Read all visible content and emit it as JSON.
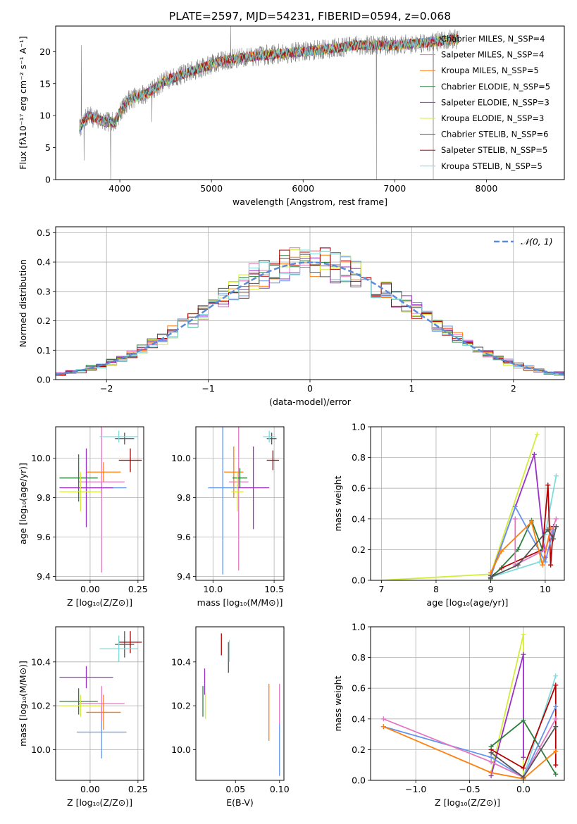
{
  "figure": {
    "title": "PLATE=2597, MJD=54231, FIBERID=0594, z=0.068"
  },
  "colors": {
    "chabrier_miles": "#6495ed",
    "salpeter_miles": "#e377c2",
    "kroupa_miles": "#ff7f0e",
    "chabrier_elodie": "#2f7f3f",
    "salpeter_elodie": "#9b30c6",
    "kroupa_elodie": "#d4ec3a",
    "chabrier_stelib": "#555555",
    "salpeter_stelib": "#b20000",
    "kroupa_stelib": "#7fdcdc",
    "data": "#808080",
    "gaussian": "#5b8ad6"
  },
  "chart_data": [
    {
      "id": "spectrum",
      "type": "line",
      "title": "PLATE=2597, MJD=54231, FIBERID=0594, z=0.068",
      "xlabel": "wavelength [Angstrom, rest frame]",
      "ylabel": "Flux [fλ10⁻¹⁷ erg cm⁻² s⁻¹ A⁻¹]",
      "xlim": [
        3300,
        8850
      ],
      "ylim": [
        0,
        24
      ],
      "xticks": [
        4000,
        5000,
        6000,
        7000,
        8000
      ],
      "yticks": [
        0,
        5,
        10,
        15,
        20
      ],
      "legend_position": "right",
      "legend": [
        {
          "label": "Chabrier MILES, N_SSP=4",
          "color_key": "chabrier_miles"
        },
        {
          "label": "Salpeter MILES, N_SSP=4",
          "color_key": "salpeter_miles"
        },
        {
          "label": "Kroupa MILES, N_SSP=5",
          "color_key": "kroupa_miles"
        },
        {
          "label": "Chabrier ELODIE, N_SSP=5",
          "color_key": "chabrier_elodie"
        },
        {
          "label": "Salpeter ELODIE, N_SSP=3",
          "color_key": "salpeter_elodie"
        },
        {
          "label": "Kroupa ELODIE, N_SSP=3",
          "color_key": "kroupa_elodie"
        },
        {
          "label": "Chabrier STELIB, N_SSP=6",
          "color_key": "chabrier_stelib"
        },
        {
          "label": "Salpeter STELIB, N_SSP=5",
          "color_key": "salpeter_stelib"
        },
        {
          "label": "Kroupa STELIB, N_SSP=5",
          "color_key": "kroupa_stelib"
        }
      ],
      "continuum": [
        [
          3560,
          8
        ],
        [
          3650,
          10
        ],
        [
          3750,
          9.5
        ],
        [
          3850,
          9
        ],
        [
          3950,
          9
        ],
        [
          4000,
          10.5
        ],
        [
          4100,
          12.5
        ],
        [
          4200,
          13
        ],
        [
          4300,
          13.5
        ],
        [
          4500,
          15.5
        ],
        [
          4700,
          16.5
        ],
        [
          4900,
          17.5
        ],
        [
          5100,
          18.5
        ],
        [
          5300,
          19
        ],
        [
          5600,
          19.5
        ],
        [
          6000,
          20
        ],
        [
          6300,
          20.5
        ],
        [
          6600,
          21
        ],
        [
          7000,
          21
        ],
        [
          7400,
          21.5
        ],
        [
          7700,
          22
        ]
      ],
      "spikes": [
        [
          3580,
          21
        ],
        [
          3610,
          3
        ],
        [
          3900,
          0
        ],
        [
          4350,
          9
        ],
        [
          5210,
          24
        ],
        [
          6800,
          0
        ],
        [
          7420,
          0
        ]
      ]
    },
    {
      "id": "residuals",
      "type": "bar",
      "xlabel": "(data-model)/error",
      "ylabel": "Normed distribution",
      "xlim": [
        -2.5,
        2.5
      ],
      "ylim": [
        0,
        0.52
      ],
      "xticks": [
        -2,
        -1,
        0,
        1,
        2
      ],
      "yticks": [
        0.0,
        0.1,
        0.2,
        0.3,
        0.4,
        0.5
      ],
      "grid": true,
      "legend_position": "top-right",
      "legend_label": "𝒩(0, 1)",
      "gaussian": {
        "mean": 0,
        "sigma": 1
      }
    },
    {
      "id": "age-vs-Z",
      "type": "scatter",
      "xlabel": "Z [log₁₀(Z/Z⊙)]",
      "ylabel": "age  [log₁₀(age/yr)]",
      "xlim": [
        -0.18,
        0.28
      ],
      "ylim": [
        9.38,
        10.16
      ],
      "xticks": [
        0.0,
        0.25
      ],
      "yticks": [
        9.4,
        9.6,
        9.8,
        10.0
      ],
      "grid": true,
      "points": [
        {
          "color_key": "chabrier_miles",
          "x": 0.06,
          "xerr": 0.13,
          "y": 9.85,
          "yerr": 0.03
        },
        {
          "color_key": "salpeter_miles",
          "x": 0.06,
          "xerr": 0.12,
          "y": 9.88,
          "yerr": 0.46
        },
        {
          "color_key": "kroupa_miles",
          "x": 0.07,
          "xerr": 0.09,
          "y": 9.93,
          "yerr": 0.05
        },
        {
          "color_key": "chabrier_elodie",
          "x": -0.06,
          "xerr": 0.1,
          "y": 9.9,
          "yerr": 0.12
        },
        {
          "color_key": "salpeter_elodie",
          "x": -0.02,
          "xerr": 0.14,
          "y": 9.85,
          "yerr": 0.2
        },
        {
          "color_key": "kroupa_elodie",
          "x": -0.05,
          "xerr": 0.11,
          "y": 9.83,
          "yerr": 0.1
        },
        {
          "color_key": "chabrier_stelib",
          "x": 0.18,
          "xerr": 0.05,
          "y": 10.1,
          "yerr": 0.03
        },
        {
          "color_key": "salpeter_stelib",
          "x": 0.21,
          "xerr": 0.06,
          "y": 9.99,
          "yerr": 0.06
        },
        {
          "color_key": "kroupa_stelib",
          "x": 0.15,
          "xerr": 0.1,
          "y": 10.11,
          "yerr": 0.03
        }
      ]
    },
    {
      "id": "age-vs-mass",
      "type": "scatter",
      "xlabel": "mass [log₁₀(M/M⊙)]",
      "ylabel": "",
      "xlim": [
        9.86,
        10.58
      ],
      "ylim": [
        9.38,
        10.16
      ],
      "xticks": [
        10.0,
        10.5
      ],
      "yticks": [
        9.4,
        9.6,
        9.8,
        10.0
      ],
      "grid": true,
      "points": [
        {
          "color_key": "chabrier_miles",
          "x": 10.08,
          "xerr": 0.12,
          "y": 9.85,
          "yerr": 0.44
        },
        {
          "color_key": "salpeter_miles",
          "x": 10.21,
          "xerr": 0.08,
          "y": 9.88,
          "yerr": 0.45
        },
        {
          "color_key": "kroupa_miles",
          "x": 10.17,
          "xerr": 0.08,
          "y": 9.93,
          "yerr": 0.13
        },
        {
          "color_key": "chabrier_elodie",
          "x": 10.22,
          "xerr": 0.06,
          "y": 9.9,
          "yerr": 0.05
        },
        {
          "color_key": "salpeter_elodie",
          "x": 10.33,
          "xerr": 0.13,
          "y": 9.85,
          "yerr": 0.21
        },
        {
          "color_key": "kroupa_elodie",
          "x": 10.2,
          "xerr": 0.05,
          "y": 9.83,
          "yerr": 0.1
        },
        {
          "color_key": "chabrier_stelib",
          "x": 10.48,
          "xerr": 0.04,
          "y": 10.1,
          "yerr": 0.03
        },
        {
          "color_key": "salpeter_stelib",
          "x": 10.49,
          "xerr": 0.05,
          "y": 9.99,
          "yerr": 0.05
        },
        {
          "color_key": "kroupa_stelib",
          "x": 10.46,
          "xerr": 0.05,
          "y": 10.11,
          "yerr": 0.03
        }
      ]
    },
    {
      "id": "mass-vs-Z",
      "type": "scatter",
      "xlabel": "Z [log₁₀(Z/Z⊙)]",
      "ylabel": "mass [log₁₀(M/M⊙)]",
      "xlim": [
        -0.18,
        0.28
      ],
      "ylim": [
        9.86,
        10.56
      ],
      "xticks": [
        0.0,
        0.25
      ],
      "yticks": [
        10.0,
        10.2,
        10.4
      ],
      "grid": true,
      "points": [
        {
          "color_key": "chabrier_miles",
          "x": 0.06,
          "xerr": 0.13,
          "y": 10.08,
          "yerr": 0.12
        },
        {
          "color_key": "salpeter_miles",
          "x": 0.06,
          "xerr": 0.12,
          "y": 10.21,
          "yerr": 0.08
        },
        {
          "color_key": "kroupa_miles",
          "x": 0.07,
          "xerr": 0.09,
          "y": 10.17,
          "yerr": 0.08
        },
        {
          "color_key": "chabrier_elodie",
          "x": -0.06,
          "xerr": 0.1,
          "y": 10.22,
          "yerr": 0.06
        },
        {
          "color_key": "salpeter_elodie",
          "x": -0.02,
          "xerr": 0.14,
          "y": 10.33,
          "yerr": 0.05
        },
        {
          "color_key": "kroupa_elodie",
          "x": -0.05,
          "xerr": 0.11,
          "y": 10.2,
          "yerr": 0.05
        },
        {
          "color_key": "chabrier_stelib",
          "x": 0.18,
          "xerr": 0.05,
          "y": 10.48,
          "yerr": 0.06
        },
        {
          "color_key": "salpeter_stelib",
          "x": 0.21,
          "xerr": 0.06,
          "y": 10.49,
          "yerr": 0.05
        },
        {
          "color_key": "kroupa_stelib",
          "x": 0.15,
          "xerr": 0.1,
          "y": 10.46,
          "yerr": 0.06
        }
      ]
    },
    {
      "id": "mass-vs-ebv",
      "type": "scatter",
      "xlabel": "E(B-V)",
      "ylabel": "",
      "xlim": [
        0.005,
        0.105
      ],
      "ylim": [
        9.86,
        10.56
      ],
      "xticks": [
        0.05,
        0.1
      ],
      "yticks": [
        10.0,
        10.2,
        10.4
      ],
      "grid": false,
      "points": [
        {
          "color_key": "chabrier_miles",
          "x": 0.1,
          "xerr": 0,
          "y": 10.0,
          "yerr": 0.12
        },
        {
          "color_key": "salpeter_miles",
          "x": 0.1,
          "xerr": 0,
          "y": 10.21,
          "yerr": 0.09
        },
        {
          "color_key": "kroupa_miles",
          "x": 0.088,
          "xerr": 0,
          "y": 10.17,
          "yerr": 0.13
        },
        {
          "color_key": "chabrier_elodie",
          "x": 0.013,
          "xerr": 0,
          "y": 10.22,
          "yerr": 0.07
        },
        {
          "color_key": "salpeter_elodie",
          "x": 0.015,
          "xerr": 0,
          "y": 10.31,
          "yerr": 0.06
        },
        {
          "color_key": "kroupa_elodie",
          "x": 0.016,
          "xerr": 0,
          "y": 10.2,
          "yerr": 0.06
        },
        {
          "color_key": "chabrier_stelib",
          "x": 0.042,
          "xerr": 0,
          "y": 10.42,
          "yerr": 0.07
        },
        {
          "color_key": "salpeter_stelib",
          "x": 0.034,
          "xerr": 0,
          "y": 10.48,
          "yerr": 0.05
        },
        {
          "color_key": "kroupa_stelib",
          "x": 0.043,
          "xerr": 0,
          "y": 10.45,
          "yerr": 0.05
        }
      ]
    },
    {
      "id": "weight-vs-age",
      "type": "line",
      "xlabel": "age  [log₁₀(age/yr)]",
      "ylabel": "mass weight",
      "xlim": [
        6.8,
        10.35
      ],
      "ylim": [
        0,
        1
      ],
      "xticks": [
        7,
        8,
        9,
        10
      ],
      "yticks": [
        0.0,
        0.2,
        0.4,
        0.6,
        0.8,
        1.0
      ],
      "grid": true,
      "series": [
        {
          "color_key": "kroupa_elodie",
          "x": [
            7.0,
            9.0,
            9.85
          ],
          "y": [
            0.0,
            0.04,
            0.95
          ]
        },
        {
          "color_key": "salpeter_elodie",
          "x": [
            9.0,
            9.8,
            10.0
          ],
          "y": [
            0.03,
            0.82,
            0.15
          ]
        },
        {
          "color_key": "kroupa_stelib",
          "x": [
            9.0,
            9.9,
            10.0,
            10.2
          ],
          "y": [
            0.02,
            0.12,
            0.3,
            0.68
          ]
        },
        {
          "color_key": "salpeter_stelib",
          "x": [
            9.0,
            9.2,
            9.95,
            10.05,
            10.1,
            10.15
          ],
          "y": [
            0.02,
            0.08,
            0.2,
            0.62,
            0.1,
            0.35
          ]
        },
        {
          "color_key": "chabrier_elodie",
          "x": [
            9.0,
            9.5,
            9.75,
            9.95
          ],
          "y": [
            0.01,
            0.2,
            0.39,
            0.2
          ]
        },
        {
          "color_key": "chabrier_miles",
          "x": [
            9.0,
            9.45,
            10.0,
            10.15
          ],
          "y": [
            0.02,
            0.48,
            0.12,
            0.33
          ]
        },
        {
          "color_key": "salpeter_miles",
          "x": [
            9.45,
            9.45,
            10.0,
            10.2
          ],
          "y": [
            0.4,
            0.1,
            0.2,
            0.4
          ]
        },
        {
          "color_key": "kroupa_miles",
          "x": [
            9.0,
            9.2,
            9.75,
            9.95,
            10.1
          ],
          "y": [
            0.05,
            0.19,
            0.38,
            0.1,
            0.34
          ]
        },
        {
          "color_key": "chabrier_stelib",
          "x": [
            9.0,
            9.5,
            10.05,
            10.15,
            10.2
          ],
          "y": [
            0.02,
            0.1,
            0.33,
            0.27,
            0.35
          ]
        }
      ]
    },
    {
      "id": "weight-vs-Z",
      "type": "line",
      "xlabel": "Z [log₁₀(Z/Z⊙)]",
      "ylabel": "mass weight",
      "xlim": [
        -1.42,
        0.38
      ],
      "ylim": [
        0,
        1
      ],
      "xticks": [
        -1.0,
        -0.5,
        0.0
      ],
      "yticks": [
        0.0,
        0.2,
        0.4,
        0.6,
        0.8,
        1.0
      ],
      "grid": true,
      "series": [
        {
          "color_key": "kroupa_elodie",
          "x": [
            -0.3,
            0.0,
            0.0
          ],
          "y": [
            0.05,
            0.95,
            0.0
          ]
        },
        {
          "color_key": "salpeter_elodie",
          "x": [
            -0.3,
            0.0,
            0.0
          ],
          "y": [
            0.03,
            0.82,
            0.15
          ]
        },
        {
          "color_key": "kroupa_stelib",
          "x": [
            -0.3,
            0.0,
            0.3
          ],
          "y": [
            0.12,
            0.02,
            0.68
          ]
        },
        {
          "color_key": "salpeter_stelib",
          "x": [
            -0.3,
            0.0,
            0.3,
            0.3
          ],
          "y": [
            0.2,
            0.08,
            0.62,
            0.1
          ]
        },
        {
          "color_key": "chabrier_elodie",
          "x": [
            -0.3,
            0.0,
            0.3
          ],
          "y": [
            0.22,
            0.39,
            0.04
          ]
        },
        {
          "color_key": "chabrier_miles",
          "x": [
            -1.3,
            -0.3,
            0.0,
            0.3
          ],
          "y": [
            0.35,
            0.15,
            0.02,
            0.48
          ]
        },
        {
          "color_key": "salpeter_miles",
          "x": [
            -1.3,
            -0.3,
            0.0,
            0.3
          ],
          "y": [
            0.4,
            0.12,
            0.02,
            0.4
          ]
        },
        {
          "color_key": "kroupa_miles",
          "x": [
            -1.3,
            -0.3,
            0.0,
            0.3
          ],
          "y": [
            0.35,
            0.05,
            0.01,
            0.19
          ]
        },
        {
          "color_key": "chabrier_stelib",
          "x": [
            -0.3,
            0.0,
            0.3
          ],
          "y": [
            0.18,
            0.02,
            0.35
          ]
        }
      ]
    }
  ]
}
